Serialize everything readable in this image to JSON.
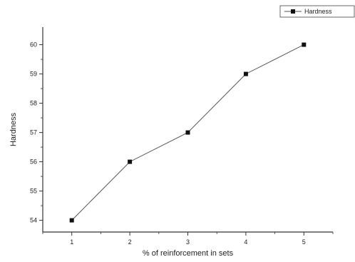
{
  "chart_data": {
    "type": "line",
    "title": "",
    "xlabel": "% of reinforcement in sets",
    "ylabel": "Hardness",
    "x": [
      1,
      2,
      3,
      4,
      5
    ],
    "series": [
      {
        "name": "Hardness",
        "values": [
          54,
          56,
          57,
          59,
          60
        ]
      }
    ],
    "xlim": [
      0.5,
      5.5
    ],
    "ylim": [
      53.6,
      60.6
    ],
    "xticks": [
      "1",
      "2",
      "3",
      "4",
      "5"
    ],
    "yticks": [
      "54",
      "55",
      "56",
      "57",
      "58",
      "59",
      "60"
    ],
    "legend_position": "top-right",
    "grid": false,
    "marker": "square",
    "line_color": "#555555",
    "marker_color": "#111111"
  }
}
